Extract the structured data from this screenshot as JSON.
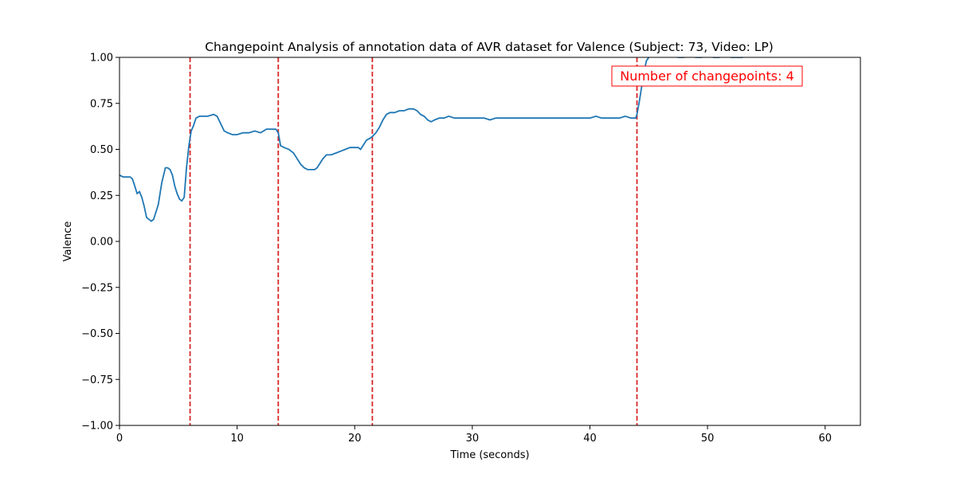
{
  "chart_data": {
    "type": "line",
    "title": "Changepoint Analysis of annotation data of AVR dataset for Valence (Subject: 73, Video: LP)",
    "xlabel": "Time (seconds)",
    "ylabel": "Valence",
    "xlim": [
      0,
      63
    ],
    "ylim": [
      -1.0,
      1.0
    ],
    "xticks": [
      0,
      10,
      20,
      30,
      40,
      50,
      60
    ],
    "xtick_labels": [
      "0",
      "10",
      "20",
      "30",
      "40",
      "50",
      "60"
    ],
    "yticks": [
      -1.0,
      -0.75,
      -0.5,
      -0.25,
      0.0,
      0.25,
      0.5,
      0.75,
      1.0
    ],
    "ytick_labels": [
      "−1.00",
      "−0.75",
      "−0.50",
      "−0.25",
      "0.00",
      "0.25",
      "0.50",
      "0.75",
      "1.00"
    ],
    "grid": false,
    "line_color": "#1f77b4",
    "changepoint_color": "#d62728",
    "series": [
      {
        "x": [
          0,
          0.3,
          0.6,
          0.9,
          1.1,
          1.3,
          1.5,
          1.7,
          1.9,
          2.1,
          2.3,
          2.5,
          2.7,
          2.9,
          3.1,
          3.3,
          3.6,
          3.9,
          4.1,
          4.3,
          4.5,
          4.7,
          4.9,
          5.1,
          5.3,
          5.5,
          5.7,
          5.9,
          6.1,
          6.3,
          6.5,
          6.8,
          7.1,
          7.5,
          8.0,
          8.3,
          8.6,
          8.9,
          9.2,
          9.6,
          10.0,
          10.5,
          11.0,
          11.5,
          12.0,
          12.5,
          13.0,
          13.3,
          13.5,
          13.7,
          14.0,
          14.4,
          14.8,
          15.1,
          15.4,
          15.7,
          16.0,
          16.3,
          16.6,
          16.8,
          17.0,
          17.3,
          17.6,
          18.0,
          18.4,
          18.8,
          19.2,
          19.6,
          20.0,
          20.3,
          20.5,
          20.7,
          21.0,
          21.3,
          21.5,
          21.8,
          22.1,
          22.4,
          22.7,
          23.0,
          23.4,
          23.8,
          24.2,
          24.6,
          25.0,
          25.3,
          25.6,
          25.9,
          26.2,
          26.5,
          26.8,
          27.2,
          27.6,
          28.0,
          28.5,
          29.0,
          29.5,
          30.0,
          30.5,
          31.0,
          31.5,
          32.0,
          32.5,
          33.0,
          33.5,
          34.0,
          34.5,
          35.0,
          35.5,
          36.0,
          36.5,
          37.0,
          37.5,
          38.0,
          38.5,
          39.0,
          39.5,
          40.0,
          40.5,
          41.0,
          41.5,
          42.0,
          42.5,
          43.0,
          43.5,
          43.9,
          44.0,
          44.2,
          44.4,
          44.6,
          44.8,
          45.0,
          45.3,
          45.6,
          46.0,
          46.5,
          47.0,
          47.5,
          48.0,
          48.5,
          49.0,
          49.5,
          50.0,
          50.5,
          51.0,
          51.5,
          52.0,
          52.5,
          53.0
        ],
        "values": [
          0.36,
          0.35,
          0.35,
          0.35,
          0.34,
          0.3,
          0.26,
          0.27,
          0.24,
          0.19,
          0.13,
          0.12,
          0.11,
          0.12,
          0.16,
          0.2,
          0.32,
          0.4,
          0.4,
          0.39,
          0.36,
          0.3,
          0.26,
          0.23,
          0.22,
          0.24,
          0.4,
          0.52,
          0.6,
          0.63,
          0.67,
          0.68,
          0.68,
          0.68,
          0.69,
          0.68,
          0.64,
          0.6,
          0.59,
          0.58,
          0.58,
          0.59,
          0.59,
          0.6,
          0.59,
          0.61,
          0.61,
          0.61,
          0.59,
          0.52,
          0.51,
          0.5,
          0.48,
          0.45,
          0.42,
          0.4,
          0.39,
          0.39,
          0.39,
          0.4,
          0.42,
          0.45,
          0.47,
          0.47,
          0.48,
          0.49,
          0.5,
          0.51,
          0.51,
          0.51,
          0.5,
          0.52,
          0.55,
          0.56,
          0.57,
          0.59,
          0.62,
          0.66,
          0.69,
          0.7,
          0.7,
          0.71,
          0.71,
          0.72,
          0.72,
          0.71,
          0.69,
          0.68,
          0.66,
          0.65,
          0.66,
          0.67,
          0.67,
          0.68,
          0.67,
          0.67,
          0.67,
          0.67,
          0.67,
          0.67,
          0.66,
          0.67,
          0.67,
          0.67,
          0.67,
          0.67,
          0.67,
          0.67,
          0.67,
          0.67,
          0.67,
          0.67,
          0.67,
          0.67,
          0.67,
          0.67,
          0.67,
          0.67,
          0.68,
          0.67,
          0.67,
          0.67,
          0.67,
          0.68,
          0.67,
          0.67,
          0.69,
          0.76,
          0.84,
          0.92,
          0.98,
          1.0,
          1.02,
          1.03,
          1.03,
          1.02,
          1.01,
          1.0,
          1.0,
          1.01,
          1.0,
          1.0,
          1.01,
          1.0,
          1.0,
          1.01,
          1.0,
          1.0,
          1.0
        ]
      }
    ],
    "changepoints": [
      6.0,
      13.5,
      21.5,
      44.0
    ],
    "annotation": {
      "text": "Number of changepoints: 4",
      "color": "#ff0000",
      "placement": "top-right"
    }
  }
}
